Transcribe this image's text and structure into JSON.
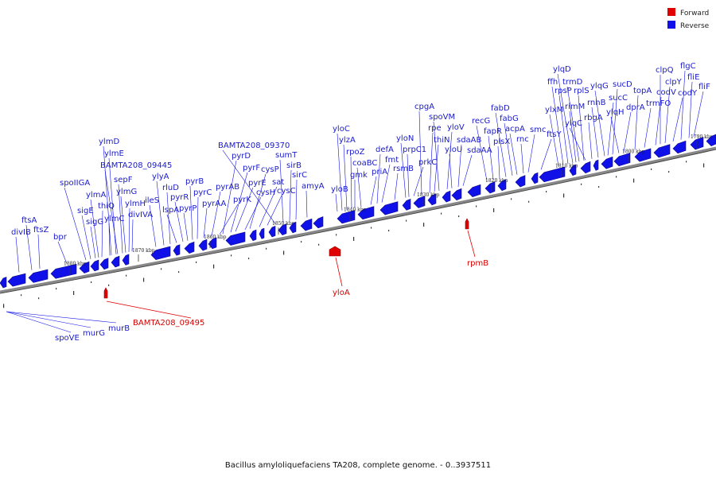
{
  "legend": {
    "forward_label": "Forward",
    "reverse_label": "Reverse",
    "forward_color": "#e00000",
    "reverse_color": "#1010e8"
  },
  "caption": "Bacillus amyloliquefaciens TA208, complete genome. - 0..3937511",
  "ticks": [
    "1880 kbp",
    "1870 kbp",
    "1860 kbp",
    "1850 kbp",
    "1840 kbp",
    "1830 kbp",
    "1820 kbp",
    "1810 kbp",
    "1800 kbp",
    "1790 kbp"
  ],
  "forward_genes": [
    "BAMTA208_09495",
    "yloA",
    "rpmB"
  ],
  "reverse_labels_below": [
    "spoVE",
    "murG",
    "murB"
  ],
  "reverse_labels_above": [
    "divIB",
    "ftsA",
    "ftsZ",
    "bpr",
    "spoIIGA",
    "sigE",
    "sigG",
    "ylmA",
    "thiQ",
    "ylmC",
    "ylmD",
    "ylmE",
    "BAMTA208_09445",
    "sepF",
    "ylmG",
    "ylmH",
    "divIVA",
    "ileS",
    "ylyA",
    "rluD",
    "lspA",
    "pyrR",
    "pyrP",
    "pyrB",
    "pyrC",
    "pyrAA",
    "pyrAB",
    "pyrK",
    "pyrD",
    "pyrF",
    "pyrE",
    "cysH",
    "cysP",
    "sat",
    "cysC",
    "BAMTA208_09370",
    "sumT",
    "sirB",
    "sirC",
    "amyA",
    "yloB",
    "yloC",
    "ylzA",
    "rpoZ",
    "gmk",
    "coaBC",
    "priA",
    "defA",
    "fmt",
    "rsmB",
    "yloN",
    "prpC1",
    "prkC",
    "cpgA",
    "rpe",
    "thiN",
    "spoVM",
    "yloV",
    "yloU",
    "sdaAB",
    "sdaAA",
    "recG",
    "fapR",
    "plsX",
    "fabD",
    "fabG",
    "acpA",
    "rnc",
    "smc",
    "ftsY",
    "ylxM",
    "ffh",
    "rpsP",
    "ylqD",
    "rimM",
    "trmD",
    "rplS",
    "ylqC",
    "rbgA",
    "rnhB",
    "ylqG",
    "sucC",
    "sucD",
    "ylqH",
    "dprA",
    "topA",
    "trmFO",
    "codV",
    "clpQ",
    "clpY",
    "codY",
    "flgC",
    "fliE",
    "fliF"
  ]
}
